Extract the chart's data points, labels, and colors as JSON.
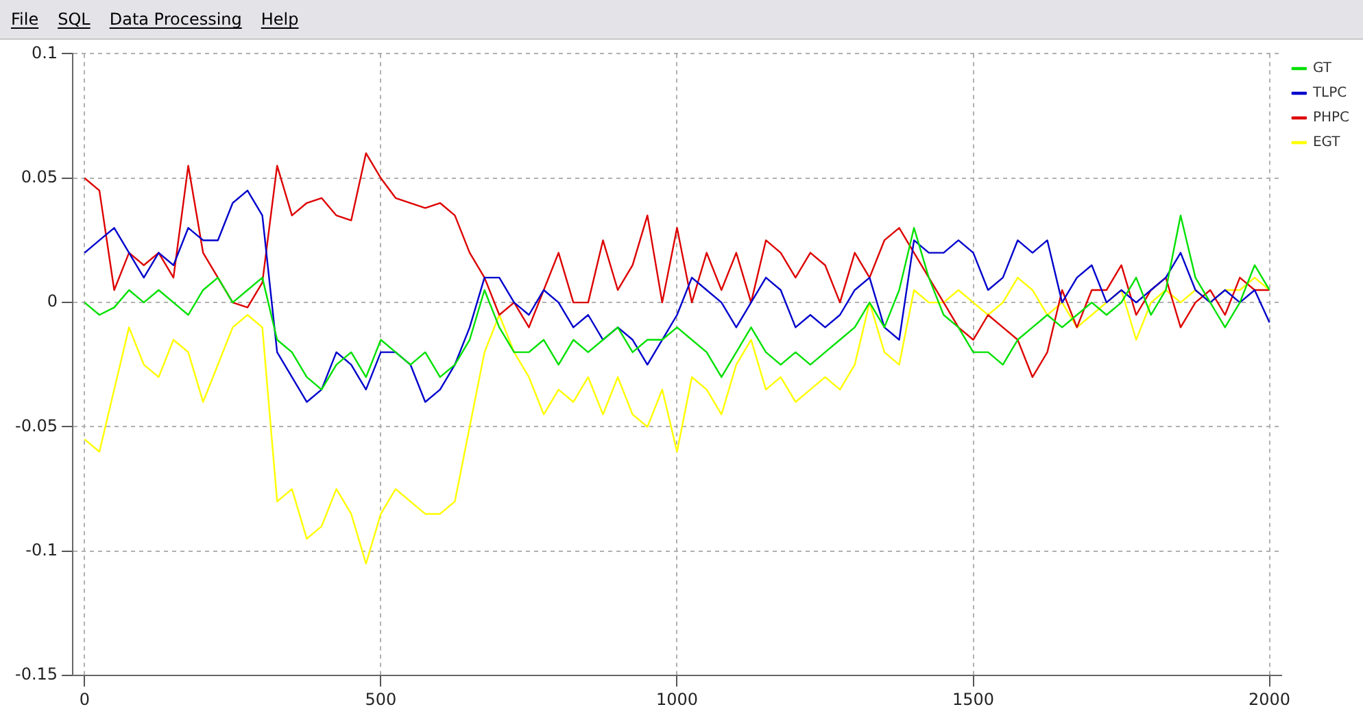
{
  "chart_data": {
    "type": "line",
    "annotations": [
      "File",
      "SQL",
      "Data Processing",
      "Help"
    ],
    "x": [
      0,
      25,
      50,
      75,
      100,
      125,
      150,
      175,
      200,
      225,
      250,
      275,
      300,
      325,
      350,
      375,
      400,
      425,
      450,
      475,
      500,
      525,
      550,
      575,
      600,
      625,
      650,
      675,
      700,
      725,
      750,
      775,
      800,
      825,
      850,
      875,
      900,
      925,
      950,
      975,
      1000,
      1025,
      1050,
      1075,
      1100,
      1125,
      1150,
      1175,
      1200,
      1225,
      1250,
      1275,
      1300,
      1325,
      1350,
      1375,
      1400,
      1425,
      1450,
      1475,
      1500,
      1525,
      1550,
      1575,
      1600,
      1625,
      1650,
      1675,
      1700,
      1725,
      1750,
      1775,
      1800,
      1825,
      1850,
      1875,
      1900,
      1925,
      1950,
      1975,
      2000
    ],
    "series": [
      {
        "name": "GT",
        "color": "#00e000",
        "values": [
          0.0,
          -0.005,
          -0.002,
          0.005,
          0.0,
          0.005,
          0.0,
          -0.005,
          0.005,
          0.01,
          0.0,
          0.005,
          0.01,
          -0.015,
          -0.02,
          -0.03,
          -0.035,
          -0.025,
          -0.02,
          -0.03,
          -0.015,
          -0.02,
          -0.025,
          -0.02,
          -0.03,
          -0.025,
          -0.015,
          0.005,
          -0.01,
          -0.02,
          -0.02,
          -0.015,
          -0.025,
          -0.015,
          -0.02,
          -0.015,
          -0.01,
          -0.02,
          -0.015,
          -0.015,
          -0.01,
          -0.015,
          -0.02,
          -0.03,
          -0.02,
          -0.01,
          -0.02,
          -0.025,
          -0.02,
          -0.025,
          -0.02,
          -0.015,
          -0.01,
          0.0,
          -0.01,
          0.005,
          0.03,
          0.01,
          -0.005,
          -0.01,
          -0.02,
          -0.02,
          -0.025,
          -0.015,
          -0.01,
          -0.005,
          -0.01,
          -0.005,
          0.0,
          -0.005,
          0.0,
          0.01,
          -0.005,
          0.005,
          0.035,
          0.01,
          0.0,
          -0.01,
          0.0,
          0.015,
          0.005
        ]
      },
      {
        "name": "TLPC",
        "color": "#0000cc",
        "values": [
          0.02,
          0.025,
          0.03,
          0.02,
          0.01,
          0.02,
          0.015,
          0.03,
          0.025,
          0.025,
          0.04,
          0.045,
          0.035,
          -0.02,
          -0.03,
          -0.04,
          -0.035,
          -0.02,
          -0.025,
          -0.035,
          -0.02,
          -0.02,
          -0.025,
          -0.04,
          -0.035,
          -0.025,
          -0.01,
          0.01,
          0.01,
          0.0,
          -0.005,
          0.005,
          0.0,
          -0.01,
          -0.005,
          -0.015,
          -0.01,
          -0.015,
          -0.025,
          -0.015,
          -0.005,
          0.01,
          0.005,
          0.0,
          -0.01,
          0.0,
          0.01,
          0.005,
          -0.01,
          -0.005,
          -0.01,
          -0.005,
          0.005,
          0.01,
          -0.01,
          -0.015,
          0.025,
          0.02,
          0.02,
          0.025,
          0.02,
          0.005,
          0.01,
          0.025,
          0.02,
          0.025,
          0.0,
          0.01,
          0.015,
          0.0,
          0.005,
          0.0,
          0.005,
          0.01,
          0.02,
          0.005,
          0.0,
          0.005,
          0.0,
          0.005,
          -0.008
        ]
      },
      {
        "name": "PHPC",
        "color": "#dd0000",
        "values": [
          0.05,
          0.045,
          0.005,
          0.02,
          0.015,
          0.02,
          0.01,
          0.055,
          0.02,
          0.01,
          0.0,
          -0.002,
          0.008,
          0.055,
          0.035,
          0.04,
          0.042,
          0.035,
          0.033,
          0.06,
          0.05,
          0.042,
          0.04,
          0.038,
          0.04,
          0.035,
          0.02,
          0.01,
          -0.005,
          0.0,
          -0.01,
          0.005,
          0.02,
          0.0,
          0.0,
          0.025,
          0.005,
          0.015,
          0.035,
          0.0,
          0.03,
          0.0,
          0.02,
          0.005,
          0.02,
          0.0,
          0.025,
          0.02,
          0.01,
          0.02,
          0.015,
          0.0,
          0.02,
          0.01,
          0.025,
          0.03,
          0.02,
          0.01,
          0.0,
          -0.01,
          -0.015,
          -0.005,
          -0.01,
          -0.015,
          -0.03,
          -0.02,
          0.005,
          -0.01,
          0.005,
          0.005,
          0.015,
          -0.005,
          0.005,
          0.01,
          -0.01,
          0.0,
          0.005,
          -0.005,
          0.01,
          0.005,
          0.005
        ]
      },
      {
        "name": "EGT",
        "color": "#ffff00",
        "values": [
          -0.055,
          -0.06,
          -0.035,
          -0.01,
          -0.025,
          -0.03,
          -0.015,
          -0.02,
          -0.04,
          -0.025,
          -0.01,
          -0.005,
          -0.01,
          -0.08,
          -0.075,
          -0.095,
          -0.09,
          -0.075,
          -0.085,
          -0.105,
          -0.085,
          -0.075,
          -0.08,
          -0.085,
          -0.085,
          -0.08,
          -0.05,
          -0.02,
          -0.005,
          -0.02,
          -0.03,
          -0.045,
          -0.035,
          -0.04,
          -0.03,
          -0.045,
          -0.03,
          -0.045,
          -0.05,
          -0.035,
          -0.06,
          -0.03,
          -0.035,
          -0.045,
          -0.025,
          -0.015,
          -0.035,
          -0.03,
          -0.04,
          -0.035,
          -0.03,
          -0.035,
          -0.025,
          0.0,
          -0.02,
          -0.025,
          0.005,
          0.0,
          0.0,
          0.005,
          0.0,
          -0.005,
          0.0,
          0.01,
          0.005,
          -0.005,
          0.0,
          -0.01,
          -0.005,
          0.0,
          0.005,
          -0.015,
          0.0,
          0.005,
          0.0,
          0.005,
          0.0,
          0.005,
          0.005,
          0.01,
          0.005
        ]
      }
    ],
    "xlim": [
      -20,
      2020
    ],
    "xticks": [
      0,
      500,
      1000,
      1500,
      2000
    ],
    "ylim": [
      -0.15,
      0.1
    ],
    "yticks": [
      -0.15,
      -0.1,
      -0.05,
      0,
      0.05,
      0.1
    ],
    "grid": true,
    "legend": "top right",
    "marker": "none",
    "line_style": "solid"
  }
}
